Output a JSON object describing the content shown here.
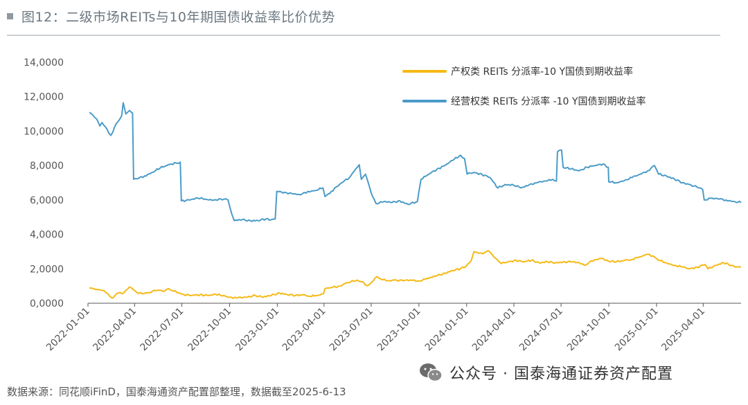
{
  "figure": {
    "title": "图12：二级市场REITs与10年期国债收益率比价优势",
    "source": "数据来源：同花顺iFinD，国泰海通资产配置部整理，数据截至2025-6-13",
    "watermark": "公众号 · 国泰海通证券资产配置",
    "watermark_icon": "wechat-icon"
  },
  "colors": {
    "series_property": "#F5B914",
    "series_operating": "#4A9BC8",
    "axis": "#555555"
  },
  "chart_data": {
    "type": "line",
    "title": "图12：二级市场REITs与10年期国债收益率比价优势",
    "xlabel": "",
    "ylabel": "",
    "ylim": [
      0,
      14
    ],
    "xlim": [
      "2022-01-01",
      "2025-06-13"
    ],
    "y_ticks": [
      0,
      2,
      4,
      6,
      8,
      10,
      12,
      14
    ],
    "y_tick_labels": [
      "0,0000",
      "2,0000",
      "4,0000",
      "6,0000",
      "8,0000",
      "10,0000",
      "12,0000",
      "14,0000"
    ],
    "x_ticks": [
      "2022-01-01",
      "2022-04-01",
      "2022-07-01",
      "2022-10-01",
      "2023-01-01",
      "2023-04-01",
      "2023-07-01",
      "2023-10-01",
      "2024-01-01",
      "2024-04-01",
      "2024-07-01",
      "2024-10-01",
      "2025-01-01",
      "2025-04-01"
    ],
    "grid": false,
    "legend_position": "top-right",
    "series": [
      {
        "name": "产权类 REITs 分派率-10 Y国债到期收益率",
        "color": "#F5B914",
        "points": [
          [
            "2022-01-04",
            0.9
          ],
          [
            "2022-01-12",
            0.85
          ],
          [
            "2022-01-20",
            0.8
          ],
          [
            "2022-01-28",
            0.75
          ],
          [
            "2022-02-08",
            0.55
          ],
          [
            "2022-02-16",
            0.3
          ],
          [
            "2022-02-22",
            0.45
          ],
          [
            "2022-03-01",
            0.6
          ],
          [
            "2022-03-08",
            0.55
          ],
          [
            "2022-03-15",
            0.75
          ],
          [
            "2022-03-22",
            0.95
          ],
          [
            "2022-03-29",
            0.8
          ],
          [
            "2022-04-06",
            0.6
          ],
          [
            "2022-04-15",
            0.55
          ],
          [
            "2022-04-25",
            0.6
          ],
          [
            "2022-05-05",
            0.7
          ],
          [
            "2022-05-15",
            0.75
          ],
          [
            "2022-05-25",
            0.7
          ],
          [
            "2022-06-05",
            0.85
          ],
          [
            "2022-06-15",
            0.7
          ],
          [
            "2022-06-25",
            0.6
          ],
          [
            "2022-07-05",
            0.5
          ],
          [
            "2022-07-20",
            0.45
          ],
          [
            "2022-08-05",
            0.5
          ],
          [
            "2022-08-20",
            0.45
          ],
          [
            "2022-09-05",
            0.5
          ],
          [
            "2022-09-20",
            0.45
          ],
          [
            "2022-10-01",
            0.35
          ],
          [
            "2022-10-15",
            0.3
          ],
          [
            "2022-11-01",
            0.35
          ],
          [
            "2022-11-20",
            0.45
          ],
          [
            "2022-12-05",
            0.35
          ],
          [
            "2022-12-20",
            0.45
          ],
          [
            "2023-01-05",
            0.6
          ],
          [
            "2023-01-20",
            0.5
          ],
          [
            "2023-02-05",
            0.45
          ],
          [
            "2023-02-20",
            0.5
          ],
          [
            "2023-03-05",
            0.4
          ],
          [
            "2023-03-20",
            0.45
          ],
          [
            "2023-03-31",
            0.55
          ],
          [
            "2023-04-03",
            0.85
          ],
          [
            "2023-04-15",
            0.9
          ],
          [
            "2023-05-01",
            1.0
          ],
          [
            "2023-05-15",
            1.2
          ],
          [
            "2023-06-01",
            1.3
          ],
          [
            "2023-06-15",
            1.25
          ],
          [
            "2023-06-20",
            1.05
          ],
          [
            "2023-06-28",
            1.1
          ],
          [
            "2023-07-05",
            1.3
          ],
          [
            "2023-07-12",
            1.55
          ],
          [
            "2023-07-20",
            1.4
          ],
          [
            "2023-08-01",
            1.3
          ],
          [
            "2023-08-15",
            1.35
          ],
          [
            "2023-09-01",
            1.3
          ],
          [
            "2023-09-15",
            1.35
          ],
          [
            "2023-10-01",
            1.3
          ],
          [
            "2023-10-20",
            1.45
          ],
          [
            "2023-11-05",
            1.6
          ],
          [
            "2023-11-20",
            1.75
          ],
          [
            "2023-12-05",
            1.9
          ],
          [
            "2023-12-20",
            2.0
          ],
          [
            "2023-12-31",
            2.15
          ],
          [
            "2024-01-10",
            2.5
          ],
          [
            "2024-01-15",
            3.0
          ],
          [
            "2024-01-25",
            2.9
          ],
          [
            "2024-02-05",
            2.95
          ],
          [
            "2024-02-12",
            3.05
          ],
          [
            "2024-02-20",
            2.8
          ],
          [
            "2024-03-01",
            2.5
          ],
          [
            "2024-03-08",
            2.3
          ],
          [
            "2024-03-20",
            2.4
          ],
          [
            "2024-04-05",
            2.5
          ],
          [
            "2024-04-20",
            2.4
          ],
          [
            "2024-05-05",
            2.5
          ],
          [
            "2024-05-20",
            2.35
          ],
          [
            "2024-06-05",
            2.4
          ],
          [
            "2024-06-20",
            2.35
          ],
          [
            "2024-07-05",
            2.4
          ],
          [
            "2024-07-20",
            2.4
          ],
          [
            "2024-08-05",
            2.35
          ],
          [
            "2024-08-15",
            2.2
          ],
          [
            "2024-08-25",
            2.4
          ],
          [
            "2024-09-10",
            2.55
          ],
          [
            "2024-09-20",
            2.6
          ],
          [
            "2024-09-30",
            2.45
          ],
          [
            "2024-10-15",
            2.4
          ],
          [
            "2024-11-01",
            2.5
          ],
          [
            "2024-11-15",
            2.55
          ],
          [
            "2024-12-01",
            2.7
          ],
          [
            "2024-12-15",
            2.85
          ],
          [
            "2024-12-25",
            2.75
          ],
          [
            "2025-01-05",
            2.5
          ],
          [
            "2025-01-20",
            2.35
          ],
          [
            "2025-02-05",
            2.2
          ],
          [
            "2025-02-20",
            2.1
          ],
          [
            "2025-03-05",
            2.0
          ],
          [
            "2025-03-20",
            2.1
          ],
          [
            "2025-04-05",
            2.25
          ],
          [
            "2025-04-10",
            2.0
          ],
          [
            "2025-04-25",
            2.2
          ],
          [
            "2025-05-10",
            2.35
          ],
          [
            "2025-05-25",
            2.2
          ],
          [
            "2025-06-05",
            2.1
          ],
          [
            "2025-06-13",
            2.1
          ]
        ]
      },
      {
        "name": "经营权类 REITs 分派率 -10 Y国债到期收益率",
        "color": "#4A9BC8",
        "points": [
          [
            "2022-01-04",
            11.1
          ],
          [
            "2022-01-10",
            10.95
          ],
          [
            "2022-01-18",
            10.7
          ],
          [
            "2022-01-24",
            10.3
          ],
          [
            "2022-01-28",
            10.5
          ],
          [
            "2022-02-07",
            10.1
          ],
          [
            "2022-02-14",
            9.75
          ],
          [
            "2022-02-18",
            9.95
          ],
          [
            "2022-02-24",
            10.4
          ],
          [
            "2022-03-01",
            10.6
          ],
          [
            "2022-03-07",
            10.9
          ],
          [
            "2022-03-10",
            11.65
          ],
          [
            "2022-03-15",
            11.0
          ],
          [
            "2022-03-22",
            11.2
          ],
          [
            "2022-03-28",
            11.05
          ],
          [
            "2022-03-30",
            7.2
          ],
          [
            "2022-04-08",
            7.25
          ],
          [
            "2022-04-20",
            7.4
          ],
          [
            "2022-05-05",
            7.6
          ],
          [
            "2022-05-20",
            7.85
          ],
          [
            "2022-06-05",
            8.05
          ],
          [
            "2022-06-20",
            8.15
          ],
          [
            "2022-06-28",
            8.2
          ],
          [
            "2022-06-30",
            5.95
          ],
          [
            "2022-07-15",
            6.0
          ],
          [
            "2022-08-01",
            6.1
          ],
          [
            "2022-08-15",
            6.05
          ],
          [
            "2022-09-01",
            6.0
          ],
          [
            "2022-09-20",
            6.05
          ],
          [
            "2022-09-28",
            6.0
          ],
          [
            "2022-10-05",
            5.2
          ],
          [
            "2022-10-10",
            4.8
          ],
          [
            "2022-10-25",
            4.85
          ],
          [
            "2022-11-10",
            4.8
          ],
          [
            "2022-11-25",
            4.8
          ],
          [
            "2022-12-10",
            4.9
          ],
          [
            "2022-12-20",
            4.85
          ],
          [
            "2022-12-28",
            4.9
          ],
          [
            "2022-12-31",
            6.5
          ],
          [
            "2023-01-15",
            6.45
          ],
          [
            "2023-02-01",
            6.35
          ],
          [
            "2023-02-15",
            6.3
          ],
          [
            "2023-03-01",
            6.5
          ],
          [
            "2023-03-15",
            6.55
          ],
          [
            "2023-03-30",
            6.7
          ],
          [
            "2023-04-03",
            6.2
          ],
          [
            "2023-04-15",
            6.5
          ],
          [
            "2023-05-01",
            6.9
          ],
          [
            "2023-05-10",
            7.1
          ],
          [
            "2023-05-20",
            7.3
          ],
          [
            "2023-06-01",
            7.8
          ],
          [
            "2023-06-08",
            8.05
          ],
          [
            "2023-06-12",
            7.2
          ],
          [
            "2023-06-20",
            7.5
          ],
          [
            "2023-07-01",
            6.4
          ],
          [
            "2023-07-10",
            5.8
          ],
          [
            "2023-07-25",
            5.9
          ],
          [
            "2023-08-10",
            5.85
          ],
          [
            "2023-08-25",
            5.95
          ],
          [
            "2023-09-10",
            5.75
          ],
          [
            "2023-09-28",
            5.9
          ],
          [
            "2023-10-01",
            6.5
          ],
          [
            "2023-10-05",
            7.2
          ],
          [
            "2023-10-20",
            7.5
          ],
          [
            "2023-11-05",
            7.8
          ],
          [
            "2023-11-20",
            8.0
          ],
          [
            "2023-12-05",
            8.3
          ],
          [
            "2023-12-20",
            8.6
          ],
          [
            "2023-12-28",
            8.4
          ],
          [
            "2024-01-02",
            7.5
          ],
          [
            "2024-01-15",
            7.6
          ],
          [
            "2024-01-30",
            7.5
          ],
          [
            "2024-02-15",
            7.3
          ],
          [
            "2024-03-01",
            6.7
          ],
          [
            "2024-03-15",
            6.9
          ],
          [
            "2024-04-01",
            6.85
          ],
          [
            "2024-04-15",
            6.7
          ],
          [
            "2024-05-01",
            6.9
          ],
          [
            "2024-05-15",
            7.0
          ],
          [
            "2024-06-01",
            7.1
          ],
          [
            "2024-06-15",
            7.2
          ],
          [
            "2024-06-22",
            7.1
          ],
          [
            "2024-06-24",
            8.8
          ],
          [
            "2024-07-02",
            8.9
          ],
          [
            "2024-07-05",
            7.9
          ],
          [
            "2024-07-20",
            7.8
          ],
          [
            "2024-08-05",
            7.7
          ],
          [
            "2024-08-20",
            7.9
          ],
          [
            "2024-09-05",
            8.0
          ],
          [
            "2024-09-20",
            8.1
          ],
          [
            "2024-09-30",
            7.9
          ],
          [
            "2024-10-01",
            7.05
          ],
          [
            "2024-10-15",
            7.0
          ],
          [
            "2024-11-01",
            7.15
          ],
          [
            "2024-11-15",
            7.3
          ],
          [
            "2024-12-01",
            7.5
          ],
          [
            "2024-12-15",
            7.7
          ],
          [
            "2024-12-28",
            8.0
          ],
          [
            "2025-01-05",
            7.5
          ],
          [
            "2025-01-20",
            7.4
          ],
          [
            "2025-02-05",
            7.2
          ],
          [
            "2025-02-20",
            7.0
          ],
          [
            "2025-03-05",
            6.9
          ],
          [
            "2025-03-20",
            6.75
          ],
          [
            "2025-03-31",
            6.6
          ],
          [
            "2025-04-03",
            6.0
          ],
          [
            "2025-04-15",
            6.1
          ],
          [
            "2025-05-01",
            6.05
          ],
          [
            "2025-05-15",
            6.0
          ],
          [
            "2025-06-01",
            5.9
          ],
          [
            "2025-06-13",
            5.85
          ]
        ]
      }
    ]
  }
}
